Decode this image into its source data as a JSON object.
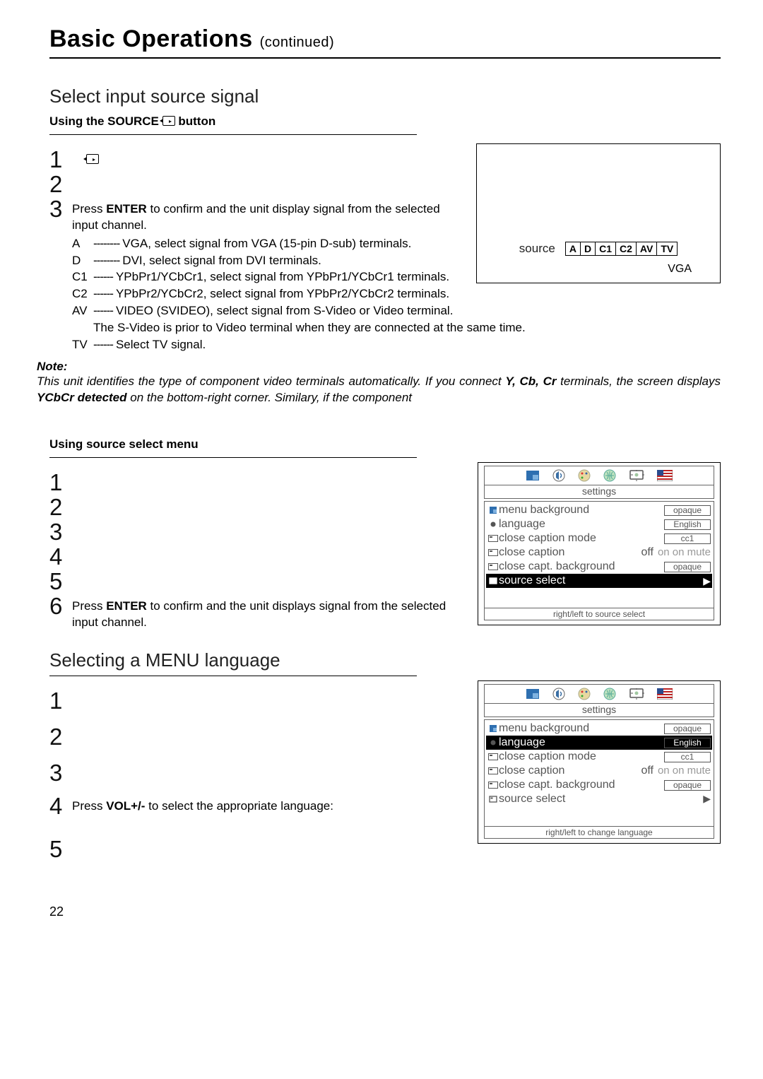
{
  "headline": {
    "main": "Basic Operations",
    "cont": "(continued)"
  },
  "section1": {
    "title": "Select input source signal",
    "sub": "Using the SOURCE",
    "sub_after": " button",
    "step3": "Press ENTER to confirm and the unit display signal from the selected input channel.",
    "signals": [
      {
        "tag": "A",
        "dash": "--------",
        "text": "VGA, select signal from VGA (15-pin D-sub) terminals."
      },
      {
        "tag": "D",
        "dash": "--------",
        "text": "DVI,  select signal from DVI terminals."
      },
      {
        "tag": "C1",
        "dash": "------",
        "text": "YPbPr1/YCbCr1, select signal from YPbPr1/YCbCr1 terminals."
      },
      {
        "tag": "C2",
        "dash": "------",
        "text": "YPbPr2/YCbCr2, select signal from YPbPr2/YCbCr2 terminals."
      },
      {
        "tag": "AV",
        "dash": "------",
        "text": "VIDEO (SVIDEO), select signal from S-Video or Video terminal."
      },
      {
        "tag": "",
        "dash": "",
        "text": "The S-Video is prior to Video terminal when they are connected at the same time."
      },
      {
        "tag": "TV",
        "dash": "------",
        "text": "Select TV signal."
      }
    ],
    "note_head": "Note:",
    "note_body_a": "This unit identifies the type of component video terminals automatically. If you connect ",
    "note_body_b": "Y, Cb, Cr",
    "note_body_c": " terminals, the screen displays ",
    "note_body_d": "YCbCr detected",
    "note_body_e": "  on the bottom-right corner. Similary, if the component"
  },
  "sourcebar": {
    "label": "source",
    "cells": [
      "A",
      "D",
      "C1",
      "C2",
      "AV",
      "TV"
    ],
    "sel": "VGA"
  },
  "section2": {
    "sub": "Using source select menu",
    "step6": "Press ENTER to confirm and the unit displays signal from the selected input channel."
  },
  "osd": {
    "settings": "settings",
    "rows": [
      {
        "icon": "square",
        "label": "menu background",
        "val": "opaque"
      },
      {
        "icon": "dot",
        "label": "language",
        "val": "English"
      },
      {
        "icon": "cc",
        "label": "close caption mode",
        "val": "cc1"
      },
      {
        "icon": "cc",
        "label": "close caption",
        "cc": "off",
        "extra": "on   on mute"
      },
      {
        "icon": "cc",
        "label": "close capt. background",
        "val": "opaque"
      },
      {
        "icon": "box",
        "label": "source select",
        "arrow": "▶"
      }
    ],
    "hint_source": "right/left to source select",
    "hint_lang": "right/left to change language",
    "hl_source": 5,
    "hl_lang": 1
  },
  "section3": {
    "title": "Selecting a MENU language",
    "step4": "Press VOL+/- to select the appropriate language:"
  },
  "page": "22",
  "colors": {
    "text": "#000000",
    "muted": "#555555",
    "faint": "#999999",
    "highlight_bg": "#000000",
    "highlight_fg": "#ffffff"
  }
}
